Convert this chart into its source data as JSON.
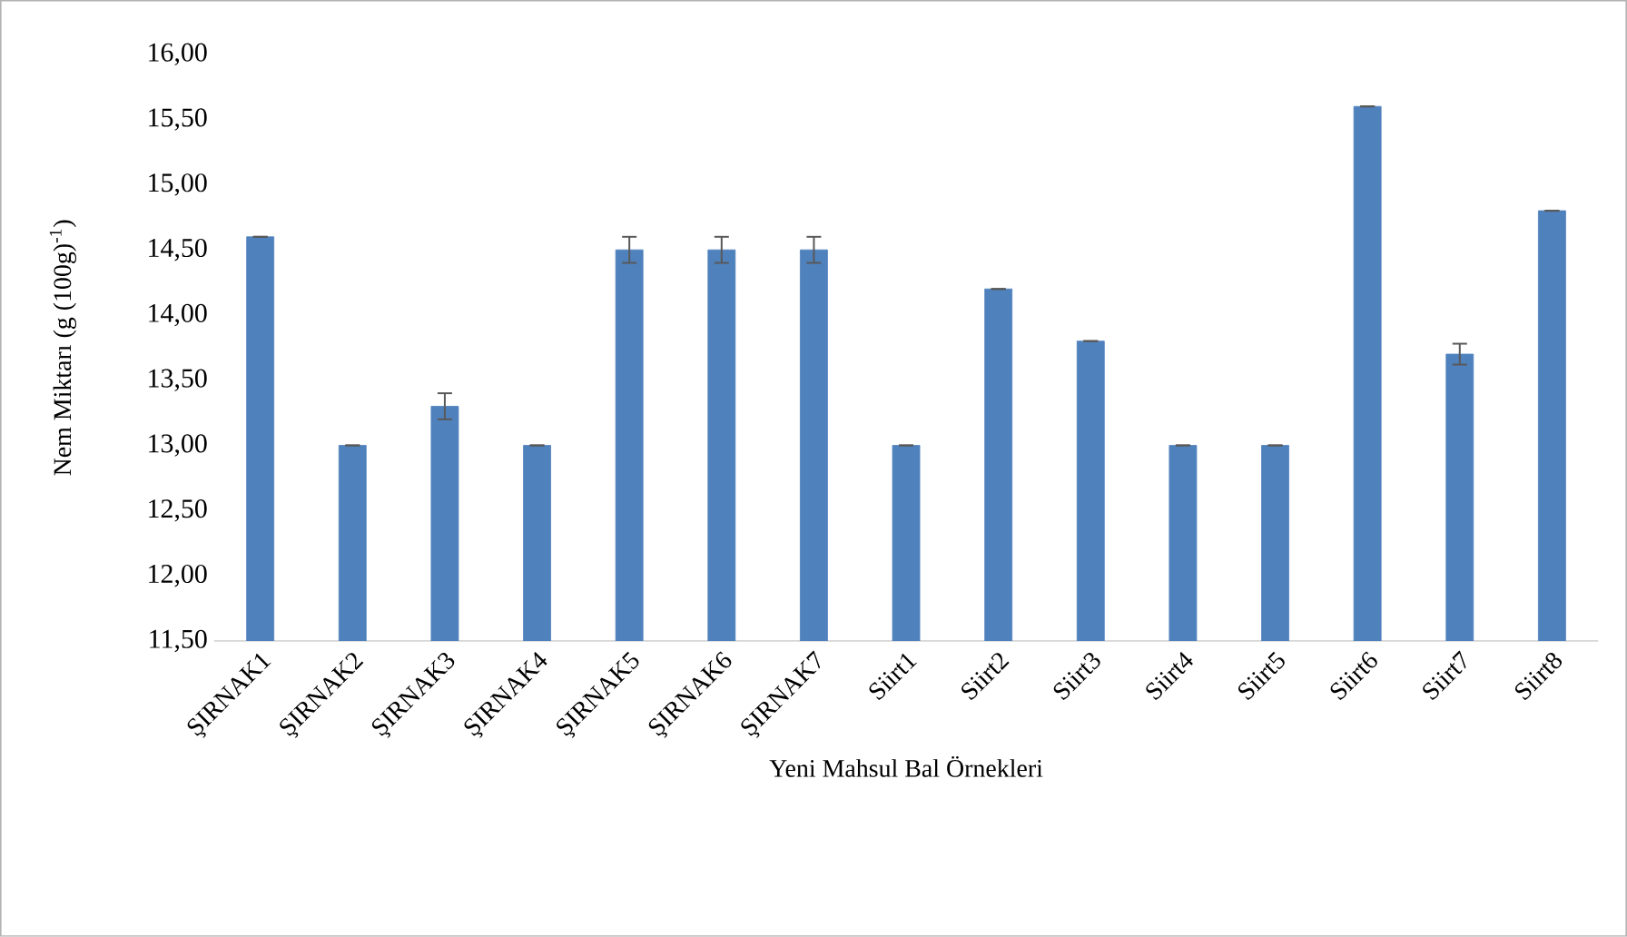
{
  "chart_data": {
    "type": "bar",
    "categories": [
      "ŞIRNAK1",
      "ŞIRNAK2",
      "ŞIRNAK3",
      "ŞIRNAK4",
      "ŞIRNAK5",
      "ŞIRNAK6",
      "ŞIRNAK7",
      "Siirt1",
      "Siirt2",
      "Siirt3",
      "Siirt4",
      "Siirt5",
      "Siirt6",
      "Siirt7",
      "Siirt8"
    ],
    "values": [
      14.6,
      13.0,
      13.3,
      13.0,
      14.5,
      14.5,
      14.5,
      13.0,
      14.2,
      13.8,
      13.0,
      13.0,
      15.6,
      13.7,
      14.8
    ],
    "errors": [
      null,
      null,
      0.1,
      null,
      0.1,
      0.1,
      0.1,
      null,
      null,
      null,
      null,
      null,
      null,
      0.08,
      null
    ],
    "color": "#4f81bd",
    "xlabel": "Yeni  Mahsul Bal Örnekleri",
    "ylabel": "Nem Miktarı (g  (100g)$^{-1}$)",
    "ylim": [
      11.5,
      16
    ],
    "yticks": [
      {
        "value": 11.5,
        "label": "11,50"
      },
      {
        "value": 12,
        "label": "12,00"
      },
      {
        "value": 12.5,
        "label": "12,50"
      },
      {
        "value": 13,
        "label": "13,00"
      },
      {
        "value": 13.5,
        "label": "13,50"
      },
      {
        "value": 14,
        "label": "14,00"
      },
      {
        "value": 14.5,
        "label": "14,50"
      },
      {
        "value": 15,
        "label": "15,00"
      },
      {
        "value": 15.5,
        "label": "15,50"
      },
      {
        "value": 16,
        "label": "16,00"
      }
    ],
    "grid": false
  }
}
